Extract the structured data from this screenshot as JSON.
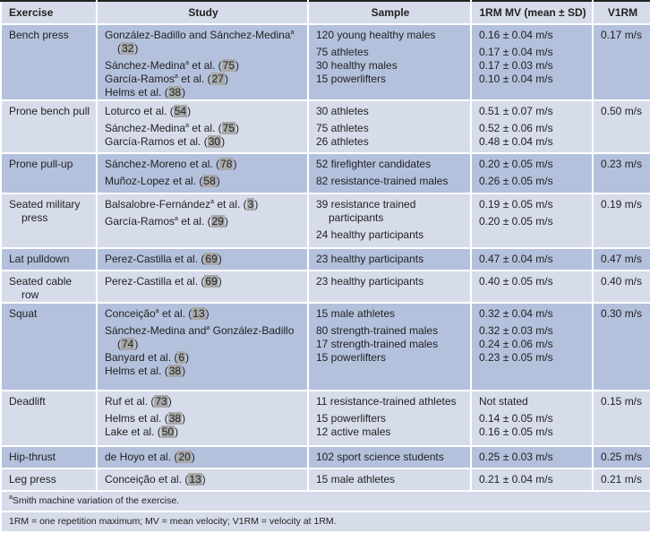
{
  "headers": [
    "Exercise",
    "Study",
    "Sample",
    "1RM MV (mean ± SD)",
    "V1RM"
  ],
  "rows": [
    {
      "exercise": "Bench press",
      "shade": "dark",
      "studies": [
        {
          "pre": "González-Badillo and Sánchez-Medina",
          "sup": "a",
          "post": " (",
          "ref": "32",
          "end": ")"
        },
        {
          "pre": "Sánchez-Medina",
          "sup": "a",
          "post": " et al. (",
          "ref": "75",
          "end": ")"
        },
        {
          "pre": "García-Ramos",
          "sup": "a",
          "post": " et al. (",
          "ref": "27",
          "end": ")"
        },
        {
          "pre": "Helms et al.",
          "sup": "",
          "post": " (",
          "ref": "38",
          "end": ")"
        }
      ],
      "samples": [
        "120 young healthy males",
        "75 athletes",
        "30 healthy males",
        "15 powerlifters"
      ],
      "mv": [
        "0.16 ± 0.04 m/s",
        "0.17 ± 0.04 m/s",
        "0.17 ± 0.03 m/s",
        "0.10 ± 0.04 m/s"
      ],
      "v1rm": "0.17 m/s"
    },
    {
      "exercise": "Prone bench pull",
      "shade": "light",
      "studies": [
        {
          "pre": "Loturco et al.",
          "sup": "",
          "post": " (",
          "ref": "54",
          "end": ")"
        },
        {
          "pre": "Sánchez-Medina",
          "sup": "a",
          "post": " et al. (",
          "ref": "75",
          "end": ")"
        },
        {
          "pre": "García-Ramos et al.",
          "sup": "",
          "post": " (",
          "ref": "30",
          "end": ")"
        }
      ],
      "samples": [
        "30 athletes",
        "75 athletes",
        "26 athletes"
      ],
      "mv": [
        "0.51 ± 0.07 m/s",
        "0.52 ± 0.06 m/s",
        "0.48 ± 0.04 m/s"
      ],
      "v1rm": "0.50 m/s"
    },
    {
      "exercise": "Prone pull-up",
      "shade": "dark",
      "studies": [
        {
          "pre": "Sánchez-Moreno et al.",
          "sup": "",
          "post": " (",
          "ref": "78",
          "end": ")"
        },
        {
          "pre": "Muñoz-Lopez et al.",
          "sup": "",
          "post": " (",
          "ref": "58",
          "end": ")"
        }
      ],
      "samples": [
        "52 firefighter candidates",
        "82 resistance-trained males"
      ],
      "mv": [
        "0.20 ± 0.05 m/s",
        "0.26 ± 0.05 m/s"
      ],
      "v1rm": "0.23 m/s"
    },
    {
      "exercise": "Seated military press",
      "shade": "light",
      "studies": [
        {
          "pre": "Balsalobre-Fernández",
          "sup": "a",
          "post": " et al. (",
          "ref": "3",
          "end": ")"
        },
        {
          "pre": "García-Ramos",
          "sup": "a",
          "post": " et al. (",
          "ref": "29",
          "end": ")"
        }
      ],
      "samples": [
        "39 resistance trained participants",
        "24 healthy participants"
      ],
      "mv": [
        "0.19 ± 0.05 m/s",
        "0.20 ± 0.05 m/s"
      ],
      "v1rm": "0.19 m/s"
    },
    {
      "exercise": "Lat pulldown",
      "shade": "dark",
      "studies": [
        {
          "pre": "Perez-Castilla et al.",
          "sup": "",
          "post": " (",
          "ref": "69",
          "end": ")"
        }
      ],
      "samples": [
        "23 healthy participants"
      ],
      "mv": [
        "0.47 ± 0.04 m/s"
      ],
      "v1rm": "0.47 m/s"
    },
    {
      "exercise": "Seated cable row",
      "shade": "light",
      "studies": [
        {
          "pre": "Perez-Castilla et al.",
          "sup": "",
          "post": " (",
          "ref": "69",
          "end": ")"
        }
      ],
      "samples": [
        "23 healthy participants"
      ],
      "mv": [
        "0.40 ± 0.05 m/s"
      ],
      "v1rm": "0.40 m/s"
    },
    {
      "exercise": "Squat",
      "shade": "dark",
      "studies": [
        {
          "pre": "Conceição",
          "sup": "a",
          "post": " et al. (",
          "ref": "13",
          "end": ")"
        },
        {
          "pre": "Sánchez-Medina and",
          "sup": "a",
          "post": " González-Badillo (",
          "ref": "74",
          "end": ")"
        },
        {
          "pre": "Banyard et al.",
          "sup": "",
          "post": " (",
          "ref": "6",
          "end": ")"
        },
        {
          "pre": "Helms et al.",
          "sup": "",
          "post": " (",
          "ref": "38",
          "end": ")"
        }
      ],
      "samples": [
        "15 male athletes",
        "80 strength-trained males",
        "17 strength-trained males",
        "15 powerlifters"
      ],
      "mv": [
        "0.32 ± 0.04 m/s",
        "0.32 ± 0.03 m/s",
        "0.24 ± 0.06 m/s",
        "0.23 ± 0.05 m/s"
      ],
      "v1rm": "0.30 m/s"
    },
    {
      "exercise": "Deadlift",
      "shade": "light",
      "studies": [
        {
          "pre": "Ruf et al.",
          "sup": "",
          "post": " (",
          "ref": "73",
          "end": ")"
        },
        {
          "pre": "Helms et al.",
          "sup": "",
          "post": " (",
          "ref": "38",
          "end": ")"
        },
        {
          "pre": "Lake et al.",
          "sup": "",
          "post": " (",
          "ref": "50",
          "end": ")"
        }
      ],
      "samples": [
        "11 resistance-trained athletes",
        "15 powerlifters",
        "12 active males"
      ],
      "mv": [
        "Not stated",
        "0.14 ± 0.05 m/s",
        "0.16 ± 0.05 m/s"
      ],
      "v1rm": "0.15 m/s"
    },
    {
      "exercise": "Hip-thrust",
      "shade": "dark",
      "studies": [
        {
          "pre": "de Hoyo et al.",
          "sup": "",
          "post": " (",
          "ref": "20",
          "end": ")"
        }
      ],
      "samples": [
        "102 sport science students"
      ],
      "mv": [
        "0.25 ± 0.03 m/s"
      ],
      "v1rm": "0.25 m/s"
    },
    {
      "exercise": "Leg press",
      "shade": "light",
      "studies": [
        {
          "pre": "Conceição et al.",
          "sup": "",
          "post": " (",
          "ref": "13",
          "end": ")"
        }
      ],
      "samples": [
        "15 male athletes"
      ],
      "mv": [
        "0.21 ± 0.04 m/s"
      ],
      "v1rm": "0.21 m/s"
    }
  ],
  "footnotes": {
    "smith_sup": "a",
    "smith": "Smith machine variation of the exercise.",
    "abbrev": "1RM = one repetition maximum; MV = mean velocity; V1RM = velocity at 1RM."
  },
  "colors": {
    "header": "#d6dcea",
    "row_dark": "#b4c1dd",
    "row_light": "#d6dcea",
    "rule": "#222222"
  }
}
